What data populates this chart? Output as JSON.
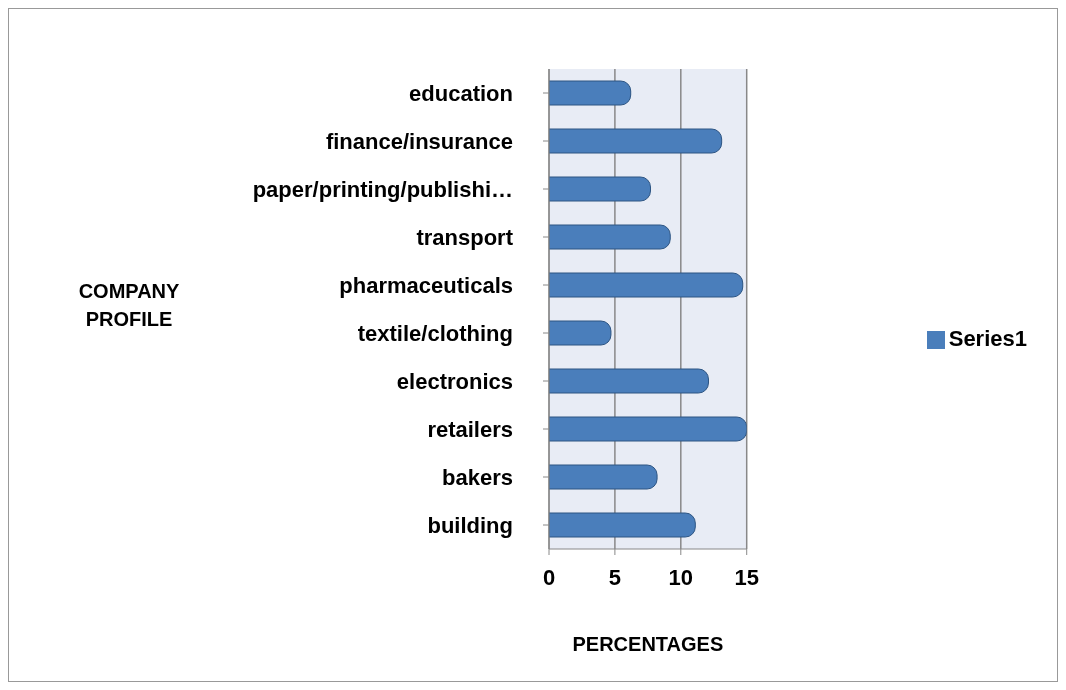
{
  "chart_data": {
    "type": "bar",
    "orientation": "horizontal",
    "xlabel": "PERCENTAGES",
    "ylabel": "COMPANY PROFILE",
    "categories": [
      "education",
      "finance/insurance",
      "paper/printing/publishi…",
      "transport",
      "pharmaceuticals",
      "textile/clothing",
      "electronics",
      "retailers",
      "bakers",
      "building"
    ],
    "series": [
      {
        "name": "Series1",
        "color": "#4a7ebb",
        "values": [
          6.2,
          13.1,
          7.7,
          9.2,
          14.7,
          4.7,
          12.1,
          15,
          8.2,
          11.1
        ]
      }
    ],
    "xlim": [
      0,
      15
    ],
    "xticks": [
      0,
      5,
      10,
      15
    ],
    "grid": "x",
    "legend": "right"
  }
}
